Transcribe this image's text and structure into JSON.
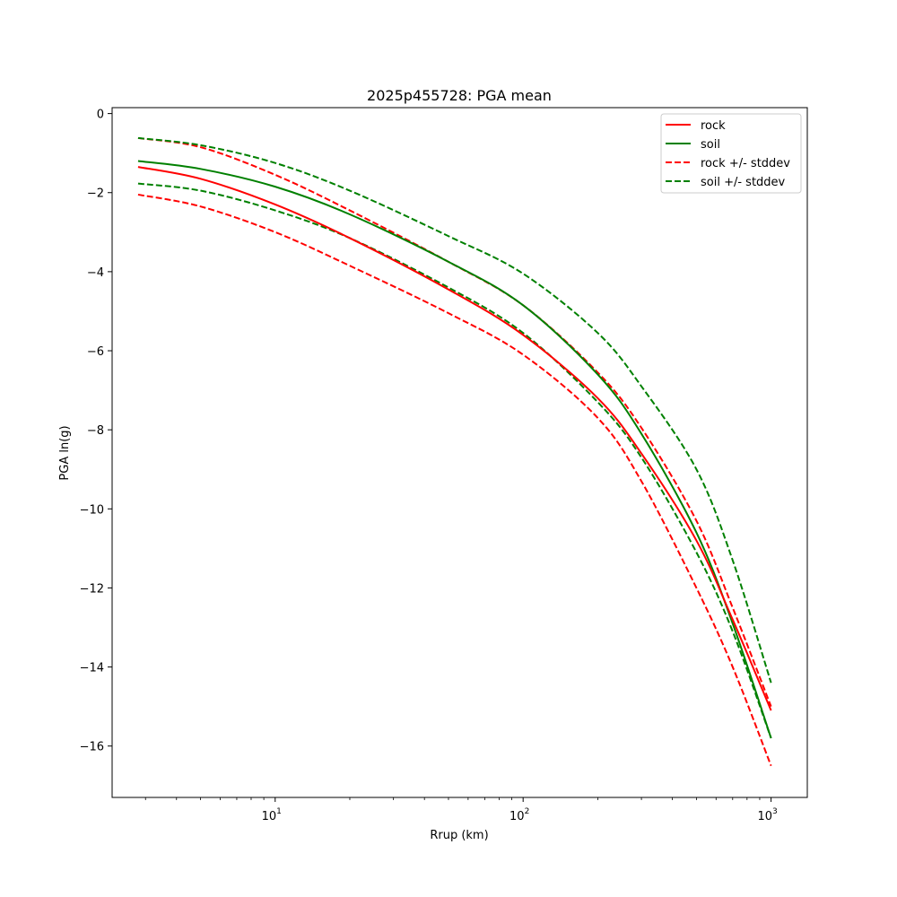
{
  "chart_data": {
    "type": "line",
    "title": "2025p455728: PGA mean",
    "xlabel": "Rrup (km)",
    "ylabel": "PGA ln(g)",
    "xscale": "log",
    "xlim": [
      2.2,
      1400
    ],
    "ylim": [
      -17.3,
      0.15
    ],
    "x_tick_labels": [
      {
        "base": "10",
        "exp": "1",
        "value": 10
      },
      {
        "base": "10",
        "exp": "2",
        "value": 100
      },
      {
        "base": "10",
        "exp": "3",
        "value": 1000
      }
    ],
    "y_ticks": [
      0,
      -2,
      -4,
      -6,
      -8,
      -10,
      -12,
      -14,
      -16
    ],
    "y_tick_labels": [
      "0",
      "−2",
      "−4",
      "−6",
      "−8",
      "−10",
      "−12",
      "−14",
      "−16"
    ],
    "grid": false,
    "legend_position": "top-right",
    "x": [
      2.8,
      5,
      10,
      20,
      50,
      100,
      200,
      300,
      500,
      700,
      1000
    ],
    "series": [
      {
        "name": "rock",
        "color": "#ff0000",
        "dash": "solid",
        "values": [
          -1.35,
          -1.65,
          -2.3,
          -3.15,
          -4.45,
          -5.6,
          -7.2,
          -8.6,
          -10.8,
          -12.8,
          -15.1
        ]
      },
      {
        "name": "soil",
        "color": "#008000",
        "dash": "solid",
        "values": [
          -1.2,
          -1.4,
          -1.85,
          -2.55,
          -3.75,
          -4.85,
          -6.6,
          -8.1,
          -10.6,
          -12.9,
          -15.8
        ]
      },
      {
        "name": "rock +/- stddev",
        "color": "#ff0000",
        "dash": "dashed",
        "values": [
          -0.62,
          -0.85,
          -1.55,
          -2.45,
          -3.75,
          -4.85,
          -6.55,
          -7.95,
          -10.3,
          -12.5,
          -15.0
        ]
      },
      {
        "name": "rock +/- stddev",
        "color": "#ff0000",
        "dash": "dashed",
        "legend": false,
        "values": [
          -2.05,
          -2.35,
          -3.0,
          -3.85,
          -5.05,
          -6.1,
          -7.7,
          -9.3,
          -12.0,
          -14.0,
          -16.5
        ]
      },
      {
        "name": "soil +/- stddev",
        "color": "#008000",
        "dash": "dashed",
        "values": [
          -0.62,
          -0.8,
          -1.25,
          -1.95,
          -3.1,
          -4.05,
          -5.55,
          -6.9,
          -9.0,
          -11.3,
          -14.4
        ]
      },
      {
        "name": "soil +/- stddev",
        "color": "#008000",
        "dash": "dashed",
        "legend": false,
        "values": [
          -1.77,
          -1.95,
          -2.45,
          -3.15,
          -4.4,
          -5.55,
          -7.3,
          -8.7,
          -11.1,
          -13.1,
          -15.8
        ]
      }
    ],
    "legend": [
      {
        "label": "rock",
        "color": "#ff0000",
        "dash": "solid"
      },
      {
        "label": "soil",
        "color": "#008000",
        "dash": "solid"
      },
      {
        "label": "rock +/- stddev",
        "color": "#ff0000",
        "dash": "dashed"
      },
      {
        "label": "soil +/- stddev",
        "color": "#008000",
        "dash": "dashed"
      }
    ]
  }
}
